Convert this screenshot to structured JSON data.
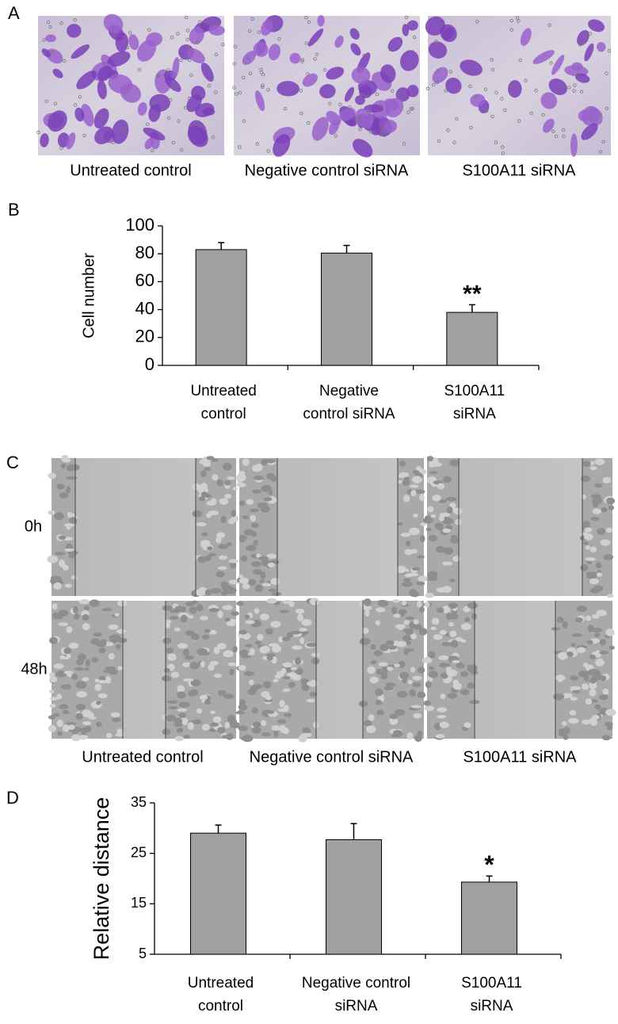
{
  "panel_labels": [
    "A",
    "B",
    "C",
    "D"
  ],
  "panel_a": {
    "captions": [
      "Untreated control",
      "Negative control siRNA",
      "S100A11 siRNA"
    ]
  },
  "panel_c": {
    "rows": [
      "0h",
      "48h"
    ],
    "captions": [
      "Untreated control",
      "Negative control siRNA",
      "S100A11 siRNA"
    ]
  },
  "chart_data": [
    {
      "type": "bar",
      "y_label": "Cell number",
      "categories": [
        [
          "Untreated",
          "control"
        ],
        [
          "Negative",
          "control siRNA"
        ],
        [
          "S100A11",
          "siRNA"
        ]
      ],
      "values": [
        83,
        80.5,
        38
      ],
      "errors": [
        5,
        5.5,
        5.5
      ],
      "value_annotations": [
        null,
        null,
        "**"
      ],
      "color": "#a0a0a0",
      "ylim": [
        0,
        100
      ],
      "yticks": [
        0,
        20,
        40,
        60,
        80,
        100
      ]
    },
    {
      "type": "bar",
      "y_label": "Relative distance",
      "categories": [
        [
          "Untreated",
          "control"
        ],
        [
          "Negative control",
          "siRNA"
        ],
        [
          "S100A11",
          "siRNA"
        ]
      ],
      "values": [
        29,
        27.7,
        19.3
      ],
      "errors": [
        1.6,
        3.2,
        1.2
      ],
      "value_annotations": [
        null,
        null,
        "*"
      ],
      "color": "#a0a0a0",
      "ylim": [
        5,
        35
      ],
      "yticks": [
        5,
        15,
        25,
        35
      ]
    }
  ]
}
